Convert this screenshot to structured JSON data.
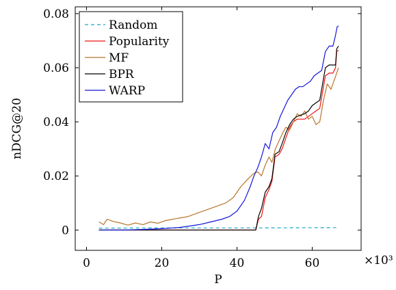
{
  "chart_data": {
    "type": "line",
    "xlabel": "P",
    "ylabel": "nDCG@20",
    "x_scale_label": "×10³",
    "xlim": [
      -3,
      73
    ],
    "ylim": [
      -0.0075,
      0.0825
    ],
    "xticks": [
      0,
      20,
      40,
      60
    ],
    "xtick_labels": [
      "0",
      "20",
      "40",
      "60"
    ],
    "yticks": [
      0,
      0.02,
      0.04,
      0.06,
      0.08
    ],
    "ytick_labels": [
      "0",
      "0.02",
      "0.04",
      "0.06",
      "0.08"
    ],
    "legend_position": "top-left",
    "grid": false,
    "series": [
      {
        "name": "Random",
        "color": "#17a6c7",
        "dash": true,
        "points": [
          [
            3.3,
            0.0007
          ],
          [
            20,
            0.0008
          ],
          [
            45,
            0.0008
          ],
          [
            67,
            0.0009
          ]
        ]
      },
      {
        "name": "Popularity",
        "color": "#ee1111",
        "dash": false,
        "points": [
          [
            3.3,
            0.0
          ],
          [
            45,
            0.0
          ],
          [
            45.7,
            0.004
          ],
          [
            46.5,
            0.005
          ],
          [
            47.5,
            0.012
          ],
          [
            48.5,
            0.015
          ],
          [
            49.3,
            0.018
          ],
          [
            50.1,
            0.027
          ],
          [
            51.2,
            0.028
          ],
          [
            52.0,
            0.03
          ],
          [
            53.0,
            0.034
          ],
          [
            54.0,
            0.038
          ],
          [
            55.0,
            0.04
          ],
          [
            56.0,
            0.041
          ],
          [
            57.0,
            0.041
          ],
          [
            58.0,
            0.041
          ],
          [
            59.0,
            0.042
          ],
          [
            60.0,
            0.043
          ],
          [
            61.0,
            0.044
          ],
          [
            62.0,
            0.045
          ],
          [
            63.5,
            0.057
          ],
          [
            64.5,
            0.058
          ],
          [
            65.5,
            0.058
          ],
          [
            66.2,
            0.06
          ],
          [
            66.5,
            0.066
          ],
          [
            67,
            0.0665
          ]
        ]
      },
      {
        "name": "MF",
        "color": "#b8742a",
        "dash": false,
        "points": [
          [
            3.3,
            0.003
          ],
          [
            4.5,
            0.002
          ],
          [
            5.5,
            0.004
          ],
          [
            7,
            0.0032
          ],
          [
            9,
            0.0026
          ],
          [
            11,
            0.0018
          ],
          [
            13,
            0.0026
          ],
          [
            15,
            0.002
          ],
          [
            17,
            0.003
          ],
          [
            19,
            0.0025
          ],
          [
            21,
            0.0035
          ],
          [
            23,
            0.004
          ],
          [
            25,
            0.0045
          ],
          [
            27,
            0.005
          ],
          [
            29,
            0.006
          ],
          [
            31,
            0.007
          ],
          [
            33,
            0.008
          ],
          [
            35,
            0.009
          ],
          [
            37,
            0.01
          ],
          [
            39,
            0.012
          ],
          [
            41,
            0.016
          ],
          [
            43,
            0.019
          ],
          [
            44.5,
            0.021
          ],
          [
            45.5,
            0.0215
          ],
          [
            46.5,
            0.02
          ],
          [
            47.5,
            0.024
          ],
          [
            48.5,
            0.027
          ],
          [
            49.3,
            0.025
          ],
          [
            50.2,
            0.03
          ],
          [
            51.2,
            0.033
          ],
          [
            52.2,
            0.036
          ],
          [
            53,
            0.038
          ],
          [
            54,
            0.037
          ],
          [
            55,
            0.04
          ],
          [
            56,
            0.043
          ],
          [
            57,
            0.042
          ],
          [
            58,
            0.044
          ],
          [
            59,
            0.041
          ],
          [
            60,
            0.042
          ],
          [
            61,
            0.039
          ],
          [
            62,
            0.04
          ],
          [
            63,
            0.048
          ],
          [
            64,
            0.054
          ],
          [
            65,
            0.052
          ],
          [
            66,
            0.056
          ],
          [
            67,
            0.06
          ]
        ]
      },
      {
        "name": "BPR",
        "color": "#000000",
        "dash": false,
        "points": [
          [
            3.3,
            0.0
          ],
          [
            45,
            0.0
          ],
          [
            45.7,
            0.005
          ],
          [
            46.5,
            0.008
          ],
          [
            47.5,
            0.014
          ],
          [
            48.5,
            0.016
          ],
          [
            49.3,
            0.019
          ],
          [
            50.1,
            0.028
          ],
          [
            51.2,
            0.029
          ],
          [
            52.0,
            0.032
          ],
          [
            53.0,
            0.036
          ],
          [
            54.0,
            0.039
          ],
          [
            55.0,
            0.041
          ],
          [
            56.0,
            0.042
          ],
          [
            57.0,
            0.0425
          ],
          [
            58.0,
            0.043
          ],
          [
            59.0,
            0.044
          ],
          [
            60.0,
            0.046
          ],
          [
            61.0,
            0.047
          ],
          [
            62.0,
            0.048
          ],
          [
            63.5,
            0.06
          ],
          [
            64.5,
            0.061
          ],
          [
            65.5,
            0.061
          ],
          [
            66.2,
            0.061
          ],
          [
            66.5,
            0.067
          ],
          [
            67,
            0.068
          ]
        ]
      },
      {
        "name": "WARP",
        "color": "#1414d8",
        "dash": false,
        "points": [
          [
            3.3,
            0.0
          ],
          [
            10,
            0.0
          ],
          [
            15,
            0.0002
          ],
          [
            20,
            0.0005
          ],
          [
            25,
            0.001
          ],
          [
            30,
            0.002
          ],
          [
            33,
            0.003
          ],
          [
            36,
            0.004
          ],
          [
            38,
            0.005
          ],
          [
            40,
            0.007
          ],
          [
            42,
            0.011
          ],
          [
            43.5,
            0.016
          ],
          [
            44.5,
            0.02
          ],
          [
            45.5,
            0.023
          ],
          [
            46.5,
            0.027
          ],
          [
            47.5,
            0.032
          ],
          [
            48.5,
            0.03
          ],
          [
            49.5,
            0.036
          ],
          [
            50.5,
            0.038
          ],
          [
            51.5,
            0.042
          ],
          [
            52.5,
            0.045
          ],
          [
            53.5,
            0.048
          ],
          [
            54.5,
            0.05
          ],
          [
            55.5,
            0.052
          ],
          [
            56.5,
            0.053
          ],
          [
            57.5,
            0.053
          ],
          [
            58.5,
            0.054
          ],
          [
            59.5,
            0.055
          ],
          [
            60.5,
            0.057
          ],
          [
            61.5,
            0.058
          ],
          [
            62.5,
            0.059
          ],
          [
            63.5,
            0.066
          ],
          [
            64.5,
            0.068
          ],
          [
            65.5,
            0.068
          ],
          [
            66.2,
            0.072
          ],
          [
            66.6,
            0.075
          ],
          [
            67,
            0.0755
          ]
        ]
      }
    ]
  }
}
